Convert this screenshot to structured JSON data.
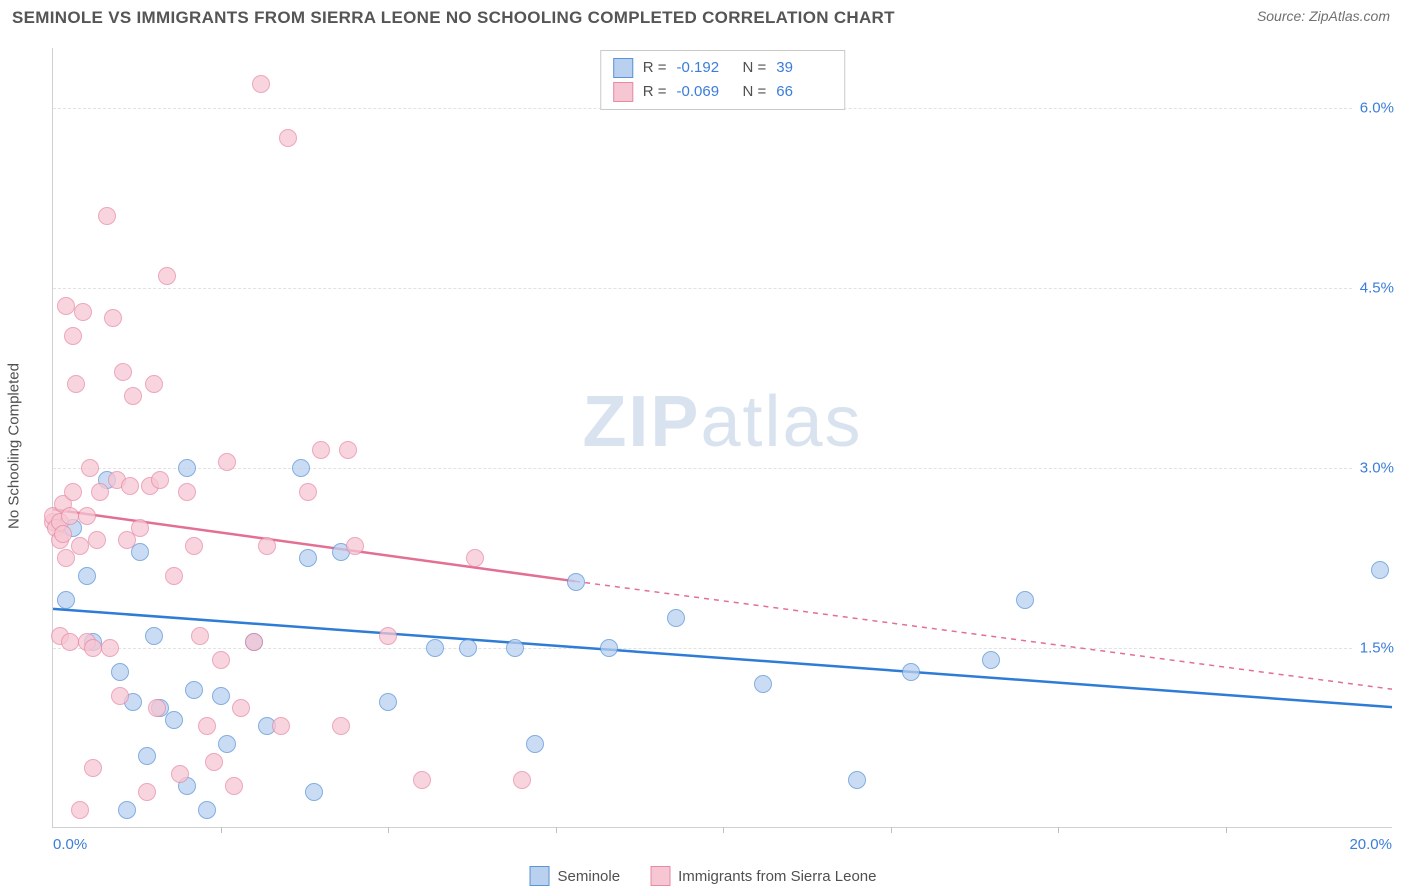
{
  "title": "SEMINOLE VS IMMIGRANTS FROM SIERRA LEONE NO SCHOOLING COMPLETED CORRELATION CHART",
  "source": "Source: ZipAtlas.com",
  "watermark_zip": "ZIP",
  "watermark_atlas": "atlas",
  "y_axis_label": "No Schooling Completed",
  "chart": {
    "type": "scatter",
    "xlim": [
      0.0,
      20.0
    ],
    "ylim": [
      0.0,
      6.5
    ],
    "x_min_label": "0.0%",
    "x_max_label": "20.0%",
    "y_ticks": [
      {
        "v": 1.5,
        "label": "1.5%"
      },
      {
        "v": 3.0,
        "label": "3.0%"
      },
      {
        "v": 4.5,
        "label": "4.5%"
      },
      {
        "v": 6.0,
        "label": "6.0%"
      }
    ],
    "x_tick_step": 2.5,
    "background_color": "#ffffff",
    "grid_color": "#e2e2e2",
    "marker_radius": 9,
    "series": [
      {
        "name": "Seminole",
        "fill": "#b9d1ef",
        "stroke": "#5a93d6",
        "line_color": "#2e7cd6",
        "R": "-0.192",
        "N": "39",
        "trend": {
          "x1": 0.0,
          "y1": 1.82,
          "x2_solid": 20.0,
          "y2_solid": 1.0,
          "x2_dash": 20.0,
          "y2_dash": 1.0
        },
        "points": [
          [
            0.2,
            1.9
          ],
          [
            0.3,
            2.5
          ],
          [
            0.5,
            2.1
          ],
          [
            0.6,
            1.55
          ],
          [
            0.8,
            2.9
          ],
          [
            1.0,
            1.3
          ],
          [
            1.1,
            0.15
          ],
          [
            1.2,
            1.05
          ],
          [
            1.3,
            2.3
          ],
          [
            1.4,
            0.6
          ],
          [
            1.5,
            1.6
          ],
          [
            1.6,
            1.0
          ],
          [
            1.8,
            0.9
          ],
          [
            2.0,
            3.0
          ],
          [
            2.0,
            0.35
          ],
          [
            2.1,
            1.15
          ],
          [
            2.3,
            0.15
          ],
          [
            2.5,
            1.1
          ],
          [
            2.6,
            0.7
          ],
          [
            3.0,
            1.55
          ],
          [
            3.2,
            0.85
          ],
          [
            3.7,
            3.0
          ],
          [
            3.8,
            2.25
          ],
          [
            3.9,
            0.3
          ],
          [
            4.3,
            2.3
          ],
          [
            5.0,
            1.05
          ],
          [
            5.7,
            1.5
          ],
          [
            6.2,
            1.5
          ],
          [
            6.9,
            1.5
          ],
          [
            7.2,
            0.7
          ],
          [
            7.8,
            2.05
          ],
          [
            8.3,
            1.5
          ],
          [
            9.3,
            1.75
          ],
          [
            10.6,
            1.2
          ],
          [
            12.0,
            0.4
          ],
          [
            12.8,
            1.3
          ],
          [
            14.0,
            1.4
          ],
          [
            14.5,
            1.9
          ],
          [
            19.8,
            2.15
          ]
        ]
      },
      {
        "name": "Immigrants from Sierra Leone",
        "fill": "#f6c6d3",
        "stroke": "#e88aa5",
        "line_color": "#e36f93",
        "R": "-0.069",
        "N": "66",
        "trend": {
          "x1": 0.0,
          "y1": 2.65,
          "x2_solid": 7.8,
          "y2_solid": 2.05,
          "x2_dash": 20.0,
          "y2_dash": 1.15
        },
        "points": [
          [
            0.0,
            2.55
          ],
          [
            0.0,
            2.6
          ],
          [
            0.05,
            2.5
          ],
          [
            0.1,
            2.55
          ],
          [
            0.1,
            2.4
          ],
          [
            0.1,
            1.6
          ],
          [
            0.15,
            2.45
          ],
          [
            0.15,
            2.7
          ],
          [
            0.2,
            2.25
          ],
          [
            0.2,
            4.35
          ],
          [
            0.25,
            1.55
          ],
          [
            0.25,
            2.6
          ],
          [
            0.3,
            2.8
          ],
          [
            0.3,
            4.1
          ],
          [
            0.35,
            3.7
          ],
          [
            0.4,
            0.15
          ],
          [
            0.4,
            2.35
          ],
          [
            0.45,
            4.3
          ],
          [
            0.5,
            1.55
          ],
          [
            0.5,
            2.6
          ],
          [
            0.55,
            3.0
          ],
          [
            0.6,
            0.5
          ],
          [
            0.6,
            1.5
          ],
          [
            0.65,
            2.4
          ],
          [
            0.7,
            2.8
          ],
          [
            0.8,
            5.1
          ],
          [
            0.85,
            1.5
          ],
          [
            0.9,
            4.25
          ],
          [
            0.95,
            2.9
          ],
          [
            1.0,
            1.1
          ],
          [
            1.05,
            3.8
          ],
          [
            1.1,
            2.4
          ],
          [
            1.15,
            2.85
          ],
          [
            1.2,
            3.6
          ],
          [
            1.3,
            2.5
          ],
          [
            1.4,
            0.3
          ],
          [
            1.45,
            2.85
          ],
          [
            1.5,
            3.7
          ],
          [
            1.55,
            1.0
          ],
          [
            1.6,
            2.9
          ],
          [
            1.7,
            4.6
          ],
          [
            1.8,
            2.1
          ],
          [
            1.9,
            0.45
          ],
          [
            2.0,
            2.8
          ],
          [
            2.1,
            2.35
          ],
          [
            2.2,
            1.6
          ],
          [
            2.3,
            0.85
          ],
          [
            2.4,
            0.55
          ],
          [
            2.5,
            1.4
          ],
          [
            2.6,
            3.05
          ],
          [
            2.7,
            0.35
          ],
          [
            2.8,
            1.0
          ],
          [
            3.0,
            1.55
          ],
          [
            3.1,
            6.2
          ],
          [
            3.2,
            2.35
          ],
          [
            3.4,
            0.85
          ],
          [
            3.5,
            5.75
          ],
          [
            3.8,
            2.8
          ],
          [
            4.0,
            3.15
          ],
          [
            4.3,
            0.85
          ],
          [
            4.4,
            3.15
          ],
          [
            4.5,
            2.35
          ],
          [
            5.0,
            1.6
          ],
          [
            5.5,
            0.4
          ],
          [
            6.3,
            2.25
          ],
          [
            7.0,
            0.4
          ]
        ]
      }
    ]
  },
  "legend_top_rows": [
    {
      "series_idx": 0,
      "r_label": "R =",
      "n_label": "N ="
    },
    {
      "series_idx": 1,
      "r_label": "R =",
      "n_label": "N ="
    }
  ],
  "legend_bottom": [
    {
      "series_idx": 0
    },
    {
      "series_idx": 1
    }
  ]
}
